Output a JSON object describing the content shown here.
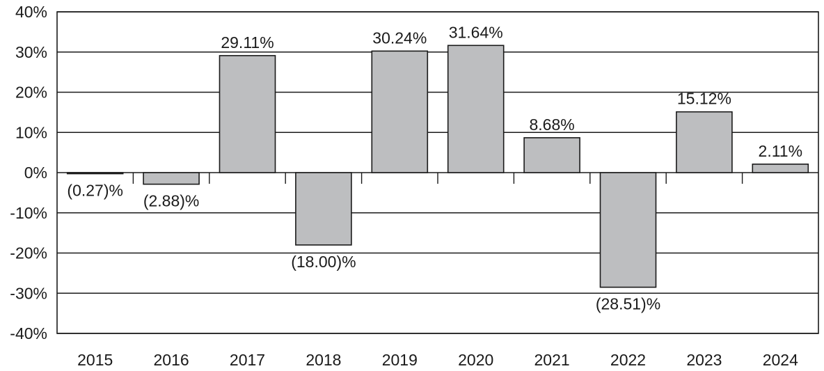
{
  "chart_data": {
    "type": "bar",
    "categories": [
      "2015",
      "2016",
      "2017",
      "2018",
      "2019",
      "2020",
      "2021",
      "2022",
      "2023",
      "2024"
    ],
    "values": [
      -0.27,
      -2.88,
      29.11,
      -18.0,
      30.24,
      31.64,
      8.68,
      -28.51,
      15.12,
      2.11
    ],
    "data_labels": [
      "(0.27)%",
      "(2.88)%",
      "29.11%",
      "(18.00)%",
      "30.24%",
      "31.64%",
      "8.68%",
      "(28.51)%",
      "15.12%",
      "2.11%"
    ],
    "y_ticks": [
      40,
      30,
      20,
      10,
      0,
      -10,
      -20,
      -30,
      -40
    ],
    "y_tick_labels": [
      "40%",
      "30%",
      "20%",
      "10%",
      "0%",
      "-10%",
      "-20%",
      "-30%",
      "-40%"
    ],
    "title": "",
    "xlabel": "",
    "ylabel": "",
    "ylim": [
      -40,
      40
    ],
    "grid": true,
    "bar_color": "#bdbec0",
    "line_color": "#1a1a1a"
  }
}
